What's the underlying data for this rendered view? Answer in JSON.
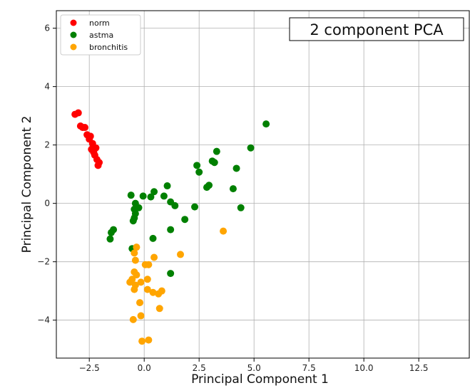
{
  "chart_data": {
    "type": "scatter",
    "title": "2 component PCA",
    "xlabel": "Principal Component 1",
    "ylabel": "Principal Component 2",
    "xlim": [
      -4.0,
      14.8
    ],
    "ylim": [
      -5.3,
      6.6
    ],
    "xticks": [
      -2.5,
      0.0,
      2.5,
      5.0,
      7.5,
      10.0,
      12.5
    ],
    "xtick_labels": [
      "−2.5",
      "0.0",
      "2.5",
      "5.0",
      "7.5",
      "10.0",
      "12.5"
    ],
    "yticks": [
      -4,
      -2,
      0,
      2,
      4,
      6
    ],
    "ytick_labels": [
      "−4",
      "−2",
      "0",
      "2",
      "4",
      "6"
    ],
    "grid": true,
    "legend_position": "top-left",
    "series": [
      {
        "name": "norm",
        "color": "#ff0000",
        "points": [
          [
            -3.15,
            3.05
          ],
          [
            -3.0,
            3.1
          ],
          [
            -2.9,
            2.65
          ],
          [
            -2.8,
            2.6
          ],
          [
            -2.7,
            2.6
          ],
          [
            -2.6,
            2.35
          ],
          [
            -2.5,
            2.2
          ],
          [
            -2.45,
            2.3
          ],
          [
            -2.35,
            2.05
          ],
          [
            -2.4,
            1.85
          ],
          [
            -2.3,
            1.75
          ],
          [
            -2.2,
            1.9
          ],
          [
            -2.25,
            1.65
          ],
          [
            -2.15,
            1.5
          ],
          [
            -2.05,
            1.4
          ],
          [
            -2.1,
            1.3
          ]
        ]
      },
      {
        "name": "astma",
        "color": "#008000",
        "points": [
          [
            5.55,
            2.72
          ],
          [
            4.85,
            1.9
          ],
          [
            3.3,
            1.78
          ],
          [
            3.1,
            1.45
          ],
          [
            3.2,
            1.4
          ],
          [
            4.2,
            1.2
          ],
          [
            2.4,
            1.3
          ],
          [
            2.5,
            1.07
          ],
          [
            2.95,
            0.62
          ],
          [
            2.85,
            0.55
          ],
          [
            4.05,
            0.5
          ],
          [
            4.4,
            -0.15
          ],
          [
            2.3,
            -0.12
          ],
          [
            1.05,
            0.6
          ],
          [
            0.45,
            0.4
          ],
          [
            0.3,
            0.22
          ],
          [
            0.9,
            0.25
          ],
          [
            1.2,
            0.05
          ],
          [
            1.4,
            -0.08
          ],
          [
            -0.05,
            0.25
          ],
          [
            -0.6,
            0.28
          ],
          [
            -0.4,
            0.0
          ],
          [
            -0.25,
            -0.15
          ],
          [
            -0.45,
            -0.2
          ],
          [
            -0.4,
            -0.35
          ],
          [
            -0.45,
            -0.5
          ],
          [
            -0.5,
            -0.6
          ],
          [
            1.85,
            -0.55
          ],
          [
            1.2,
            -0.9
          ],
          [
            0.4,
            -1.2
          ],
          [
            -1.4,
            -0.9
          ],
          [
            -1.5,
            -1.0
          ],
          [
            -1.55,
            -1.22
          ],
          [
            -0.55,
            -1.55
          ],
          [
            1.2,
            -2.4
          ]
        ]
      },
      {
        "name": "bronchitis",
        "color": "#ffa500",
        "points": [
          [
            3.6,
            -0.95
          ],
          [
            1.65,
            -1.75
          ],
          [
            0.45,
            -1.85
          ],
          [
            -0.35,
            -1.5
          ],
          [
            -0.45,
            -1.7
          ],
          [
            -0.4,
            -1.95
          ],
          [
            0.05,
            -2.1
          ],
          [
            0.2,
            -2.1
          ],
          [
            -0.45,
            -2.35
          ],
          [
            -0.35,
            -2.45
          ],
          [
            -0.55,
            -2.6
          ],
          [
            -0.65,
            -2.7
          ],
          [
            -0.4,
            -2.8
          ],
          [
            -0.45,
            -2.95
          ],
          [
            0.15,
            -2.6
          ],
          [
            0.15,
            -2.95
          ],
          [
            0.4,
            -3.05
          ],
          [
            0.65,
            -3.1
          ],
          [
            0.8,
            -3.0
          ],
          [
            -0.15,
            -2.7
          ],
          [
            -0.2,
            -3.4
          ],
          [
            0.7,
            -3.6
          ],
          [
            -0.15,
            -3.85
          ],
          [
            -0.5,
            -3.98
          ],
          [
            0.2,
            -4.68
          ],
          [
            -0.1,
            -4.72
          ]
        ]
      }
    ]
  }
}
